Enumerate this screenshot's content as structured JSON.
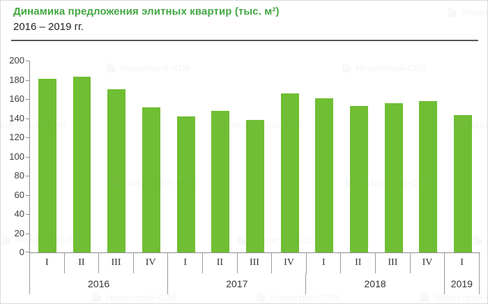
{
  "header": {
    "title": "Динамика предложения элитных квартир (тыс. м²)",
    "subtitle": "2016 – 2019 гг."
  },
  "watermark": {
    "text": "Новострой-СПб"
  },
  "chart_data": {
    "type": "bar",
    "title": "Динамика предложения элитных квартир (тыс. м²)",
    "subtitle": "2016 – 2019 гг.",
    "ylabel": "",
    "xlabel": "",
    "unit": "тыс. м²",
    "categories": [
      "I",
      "II",
      "III",
      "IV",
      "I",
      "II",
      "III",
      "IV",
      "I",
      "II",
      "III",
      "IV",
      "I"
    ],
    "year_groups": [
      {
        "label": "2016",
        "span": 4
      },
      {
        "label": "2017",
        "span": 4
      },
      {
        "label": "2018",
        "span": 4
      },
      {
        "label": "2019",
        "span": 1
      }
    ],
    "values": [
      181,
      183,
      170,
      151,
      142,
      148,
      138,
      166,
      161,
      153,
      156,
      158,
      143
    ],
    "ylim": [
      0,
      200
    ],
    "ytick_step": 20,
    "grid": false,
    "legend_position": "none",
    "bar_color": "#6fbe33",
    "axis_color": "#8c8c8c",
    "title_color": "#43a843"
  }
}
